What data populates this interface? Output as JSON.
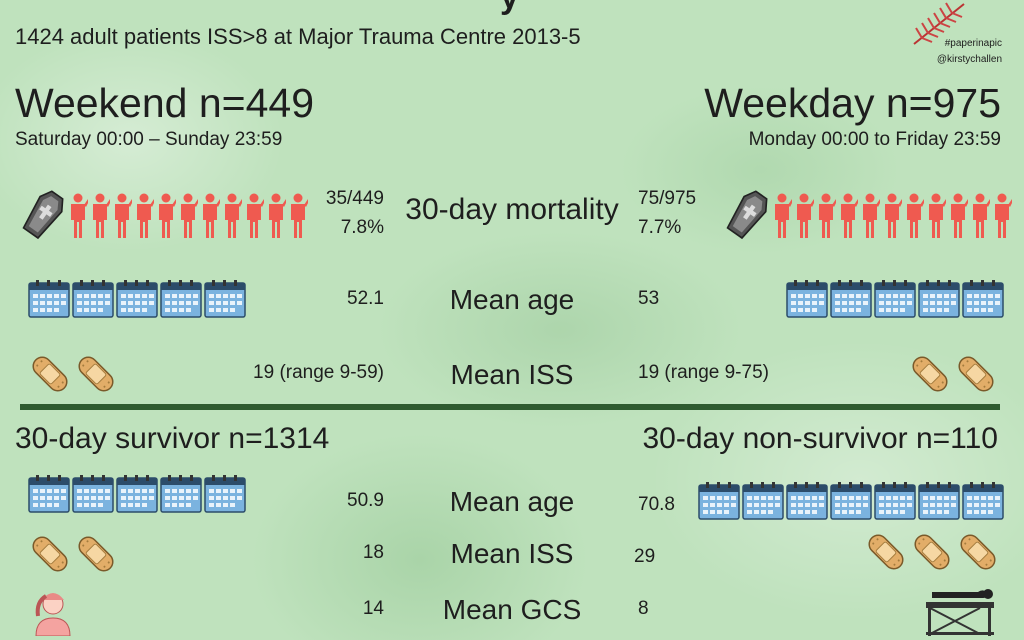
{
  "header": {
    "title_fragment": "y",
    "subtitle": "1424 adult patients ISS>8 at Major Trauma Centre 2013-5",
    "hashtag": "#paperinapic",
    "handle": "@kirstychallen"
  },
  "weekend": {
    "title": "Weekend n=449",
    "range": "Saturday 00:00 – Sunday 23:59"
  },
  "weekday": {
    "title": "Weekday n=975",
    "range": "Monday 00:00 to Friday 23:59"
  },
  "comparison": {
    "mortality": {
      "label": "30-day mortality",
      "weekend_count": "35/449",
      "weekend_pct": "7.8%",
      "weekday_count": "75/975",
      "weekday_pct": "7.7%"
    },
    "age": {
      "label": "Mean age",
      "weekend": "52.1",
      "weekday": "53"
    },
    "iss": {
      "label": "Mean ISS",
      "weekend": "19 (range 9-59)",
      "weekday": "19 (range 9-75)"
    }
  },
  "survivor": {
    "title": "30-day survivor n=1314"
  },
  "nonsurvivor": {
    "title": "30-day non-survivor n=110"
  },
  "outcome": {
    "age": {
      "label": "Mean age",
      "survivor": "50.9",
      "nonsurvivor": "70.8"
    },
    "iss": {
      "label": "Mean ISS",
      "survivor": "18",
      "nonsurvivor": "29"
    },
    "gcs": {
      "label": "Mean GCS",
      "survivor": "14",
      "nonsurvivor": "8"
    }
  },
  "icons": {
    "person": "person-icon",
    "coffin": "coffin-icon",
    "calendar": "calendar-icon",
    "bandage": "bandage-icon",
    "confused": "confused-person-icon",
    "stretcher": "stretcher-icon",
    "feather": "feather-icon"
  },
  "colors": {
    "person": "#ef5a50",
    "coffin": "#4b4b4b",
    "calendar": "#6fa7d6",
    "bandage": "#e5b370",
    "divider": "#2f5b30",
    "background": "#bfe2bd"
  }
}
